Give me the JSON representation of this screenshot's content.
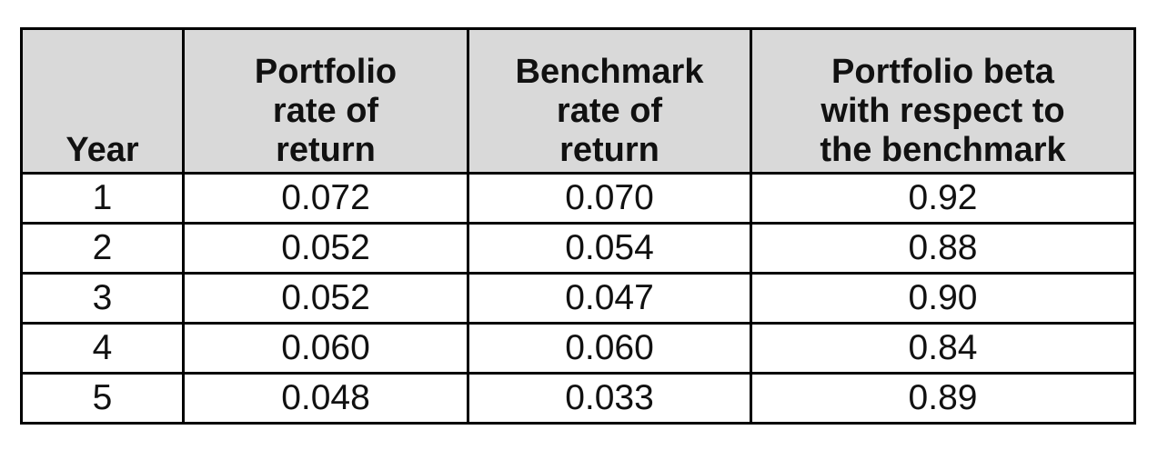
{
  "table": {
    "header": [
      [
        "Year"
      ],
      [
        "Portfolio",
        "rate of",
        "return"
      ],
      [
        "Benchmark",
        "rate of",
        "return"
      ],
      [
        "Portfolio beta",
        "with respect to",
        "the benchmark"
      ]
    ],
    "rows": [
      [
        "1",
        "0.072",
        "0.070",
        "0.92"
      ],
      [
        "2",
        "0.052",
        "0.054",
        "0.88"
      ],
      [
        "3",
        "0.052",
        "0.047",
        "0.90"
      ],
      [
        "4",
        "0.060",
        "0.060",
        "0.84"
      ],
      [
        "5",
        "0.048",
        "0.033",
        "0.89"
      ]
    ]
  }
}
